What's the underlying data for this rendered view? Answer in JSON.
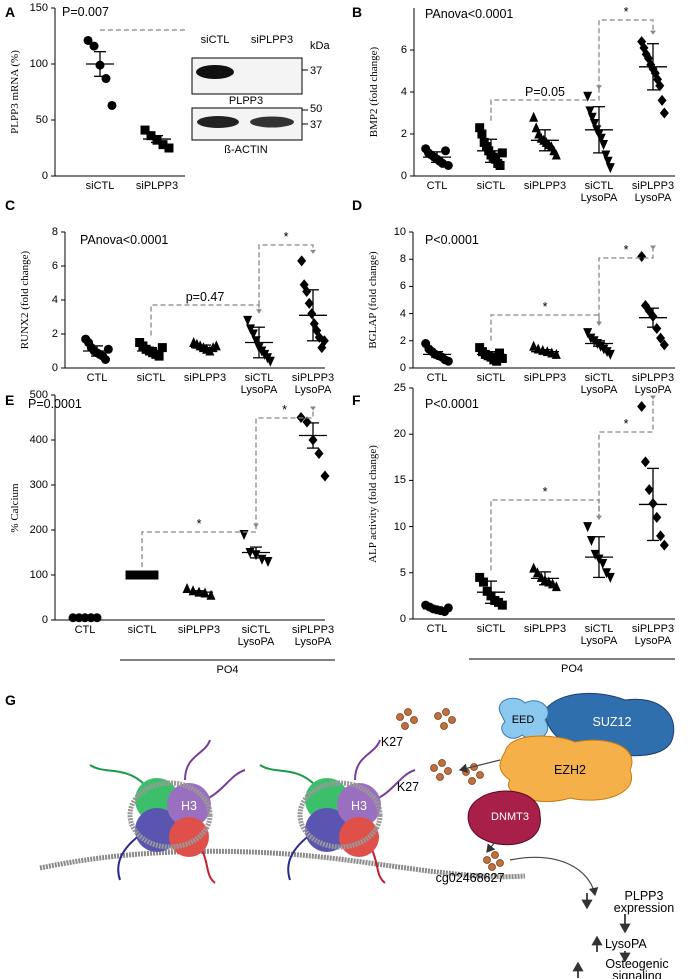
{
  "chart_data": [
    {
      "type": "dotplot",
      "panel": "A",
      "ylabel": "PLPP3 mRNA (%)",
      "annotation": "P=0.007",
      "color": "#000000",
      "categories": [
        "siCTL",
        "siPLPP3"
      ],
      "markers": [
        "circle",
        "square"
      ],
      "values": [
        [
          121,
          116,
          99,
          87,
          63
        ],
        [
          41,
          36,
          32,
          28,
          25
        ]
      ],
      "means": [
        100,
        33
      ],
      "errors": [
        11,
        3
      ],
      "ylim": [
        0,
        150
      ],
      "yticks": [
        0,
        50,
        100,
        150
      ],
      "comparisons": []
    },
    {
      "type": "dotplot",
      "panel": "B",
      "ylabel": "BMP2 (fold change)",
      "annotation": "PAnova<0.0001",
      "color": "#000000",
      "categories": [
        "CTL",
        "siCTL",
        "siPLPP3",
        "siCTL\nLysoPA",
        "siPLPP3\nLysoPA"
      ],
      "markers": [
        "circle",
        "square",
        "triangle",
        "triangle-down",
        "diamond"
      ],
      "values": [
        [
          1.3,
          1.1,
          1.0,
          0.9,
          0.8,
          0.7,
          0.6,
          1.2,
          0.5
        ],
        [
          2.3,
          2.0,
          1.6,
          1.4,
          1.2,
          1.0,
          0.9,
          0.8,
          0.6,
          0.5,
          1.1
        ],
        [
          2.8,
          2.3,
          2.0,
          1.8,
          1.7,
          1.6,
          1.5,
          1.4,
          1.2,
          1.0
        ],
        [
          3.8,
          3.1,
          2.8,
          2.5,
          2.2,
          2.0,
          1.8,
          1.5,
          1.0,
          0.7,
          0.4
        ],
        [
          6.4,
          6.1,
          5.8,
          5.6,
          5.3,
          5.1,
          4.9,
          4.6,
          4.3,
          3.6,
          3.0
        ]
      ],
      "means": [
        0.9,
        1.2,
        1.7,
        2.2,
        5.2
      ],
      "errors": [
        0.25,
        0.55,
        0.5,
        1.1,
        1.1
      ],
      "ylim": [
        0,
        8
      ],
      "yticks": [
        0,
        2,
        4,
        6
      ],
      "comparisons": [
        "P=0.05",
        "*"
      ]
    },
    {
      "type": "dotplot",
      "panel": "C",
      "ylabel": "RUNX2 (fold change)",
      "annotation": "PAnova<0.0001",
      "color": "#000000",
      "categories": [
        "CTL",
        "siCTL",
        "siPLPP3",
        "siCTL\nLysoPA",
        "siPLPP3\nLysoPA"
      ],
      "markers": [
        "circle",
        "square",
        "triangle",
        "triangle-down",
        "diamond"
      ],
      "values": [
        [
          1.7,
          1.5,
          1.2,
          1.0,
          0.9,
          0.8,
          0.7,
          0.5,
          1.1
        ],
        [
          1.5,
          1.3,
          1.1,
          1.0,
          0.9,
          0.8,
          0.7,
          1.2
        ],
        [
          1.5,
          1.4,
          1.3,
          1.2,
          1.1,
          1.0,
          1.2,
          1.3
        ],
        [
          2.8,
          2.3,
          2.0,
          1.6,
          1.2,
          1.0,
          0.8,
          0.6,
          0.4
        ],
        [
          6.3,
          4.9,
          4.5,
          3.8,
          3.2,
          2.6,
          2.2,
          1.8,
          1.2,
          1.6
        ]
      ],
      "means": [
        1.0,
        1.0,
        1.2,
        1.5,
        3.1
      ],
      "errors": [
        0.3,
        0.2,
        0.15,
        0.9,
        1.5
      ],
      "ylim": [
        0,
        8
      ],
      "yticks": [
        0,
        2,
        4,
        6,
        8
      ],
      "comparisons": [
        "p=0.47",
        "*"
      ]
    },
    {
      "type": "dotplot",
      "panel": "D",
      "ylabel": "BGLAP (fold change)",
      "annotation": "P<0.0001",
      "color": "#000000",
      "categories": [
        "CTL",
        "siCTL",
        "siPLPP3",
        "siCTL\nLysoPA",
        "siPLPP3\nLysoPA"
      ],
      "markers": [
        "circle",
        "square",
        "triangle",
        "triangle-down",
        "diamond"
      ],
      "values": [
        [
          1.8,
          1.4,
          1.2,
          1.0,
          0.9,
          0.8,
          0.6,
          0.5
        ],
        [
          1.5,
          1.2,
          1.0,
          0.9,
          0.8,
          0.6,
          0.5,
          1.1,
          0.7
        ],
        [
          1.6,
          1.4,
          1.3,
          1.2,
          1.1,
          1.0
        ],
        [
          2.6,
          2.2,
          2.0,
          1.8,
          1.6,
          1.4,
          1.2,
          1.0
        ],
        [
          8.2,
          4.6,
          4.2,
          3.8,
          2.9,
          2.2,
          1.7
        ]
      ],
      "means": [
        1.0,
        1.0,
        1.2,
        1.8,
        3.7
      ],
      "errors": [
        0.2,
        0.2,
        0.15,
        0.2,
        0.7
      ],
      "ylim": [
        0,
        10
      ],
      "yticks": [
        0,
        2,
        4,
        6,
        8,
        10
      ],
      "comparisons": [
        "*",
        "*"
      ]
    },
    {
      "type": "dotplot",
      "panel": "E",
      "ylabel": "% Calcium",
      "annotation": "P=0.0001",
      "group_label": "PO4",
      "color": "#000000",
      "categories": [
        "CTL",
        "siCTL",
        "siPLPP3",
        "siCTL\nLysoPA",
        "siPLPP3\nLysoPA"
      ],
      "markers": [
        "circle",
        "square",
        "triangle",
        "triangle-down",
        "diamond"
      ],
      "values": [
        [
          5,
          5,
          5,
          5,
          5
        ],
        [
          100,
          100,
          100,
          100,
          100
        ],
        [
          70,
          65,
          62,
          60,
          55
        ],
        [
          190,
          150,
          145,
          135,
          130
        ],
        [
          450,
          440,
          400,
          370,
          320
        ]
      ],
      "means": [
        5,
        100,
        62,
        150,
        410
      ],
      "errors": [
        0,
        2,
        3,
        12,
        28
      ],
      "ylim": [
        0,
        500
      ],
      "yticks": [
        0,
        100,
        200,
        300,
        400,
        500
      ],
      "comparisons": [
        "*",
        "*"
      ]
    },
    {
      "type": "dotplot",
      "panel": "F",
      "ylabel": "ALP activity (fold change)",
      "annotation": "P<0.0001",
      "group_label": "PO4",
      "color": "#000000",
      "categories": [
        "CTL",
        "siCTL",
        "siPLPP3",
        "siCTL\nLysoPA",
        "siPLPP3\nLysoPA"
      ],
      "markers": [
        "circle",
        "square",
        "triangle",
        "triangle-down",
        "diamond"
      ],
      "values": [
        [
          1.5,
          1.3,
          1.1,
          1.0,
          0.9,
          0.8,
          1.2
        ],
        [
          4.5,
          4.0,
          3.0,
          2.5,
          2.0,
          1.8,
          1.5
        ],
        [
          5.5,
          5.0,
          4.5,
          4.2,
          4.0,
          3.8,
          3.5
        ],
        [
          10,
          8.5,
          7,
          6.5,
          6,
          5,
          4.5
        ],
        [
          23,
          17,
          14,
          12.5,
          11,
          9,
          8
        ]
      ],
      "means": [
        1.1,
        2.9,
        4.4,
        6.7,
        12.4
      ],
      "errors": [
        0.2,
        1.2,
        0.7,
        2.2,
        3.9
      ],
      "ylim": [
        0,
        25
      ],
      "yticks": [
        0,
        5,
        10,
        15,
        20,
        25
      ],
      "comparisons": [
        "*",
        "*"
      ]
    }
  ],
  "blot": {
    "lanes": [
      "siCTL",
      "siPLPP3"
    ],
    "unit": "kDa",
    "proteins": [
      "PLPP3",
      "ß-ACTIN"
    ],
    "markers_kda": [
      [
        37
      ],
      [
        50,
        37
      ]
    ]
  },
  "diagram": {
    "panel": "G",
    "proteins": [
      "EED",
      "SUZ12",
      "EZH2",
      "DNMT3"
    ],
    "histone_marks": [
      "K27",
      "K27"
    ],
    "histones": [
      "H3",
      "H3"
    ],
    "cpg": "cg02468627",
    "cascade": [
      "PLPP3 expression",
      "LysoPA",
      "Osteogenic signaling"
    ]
  }
}
